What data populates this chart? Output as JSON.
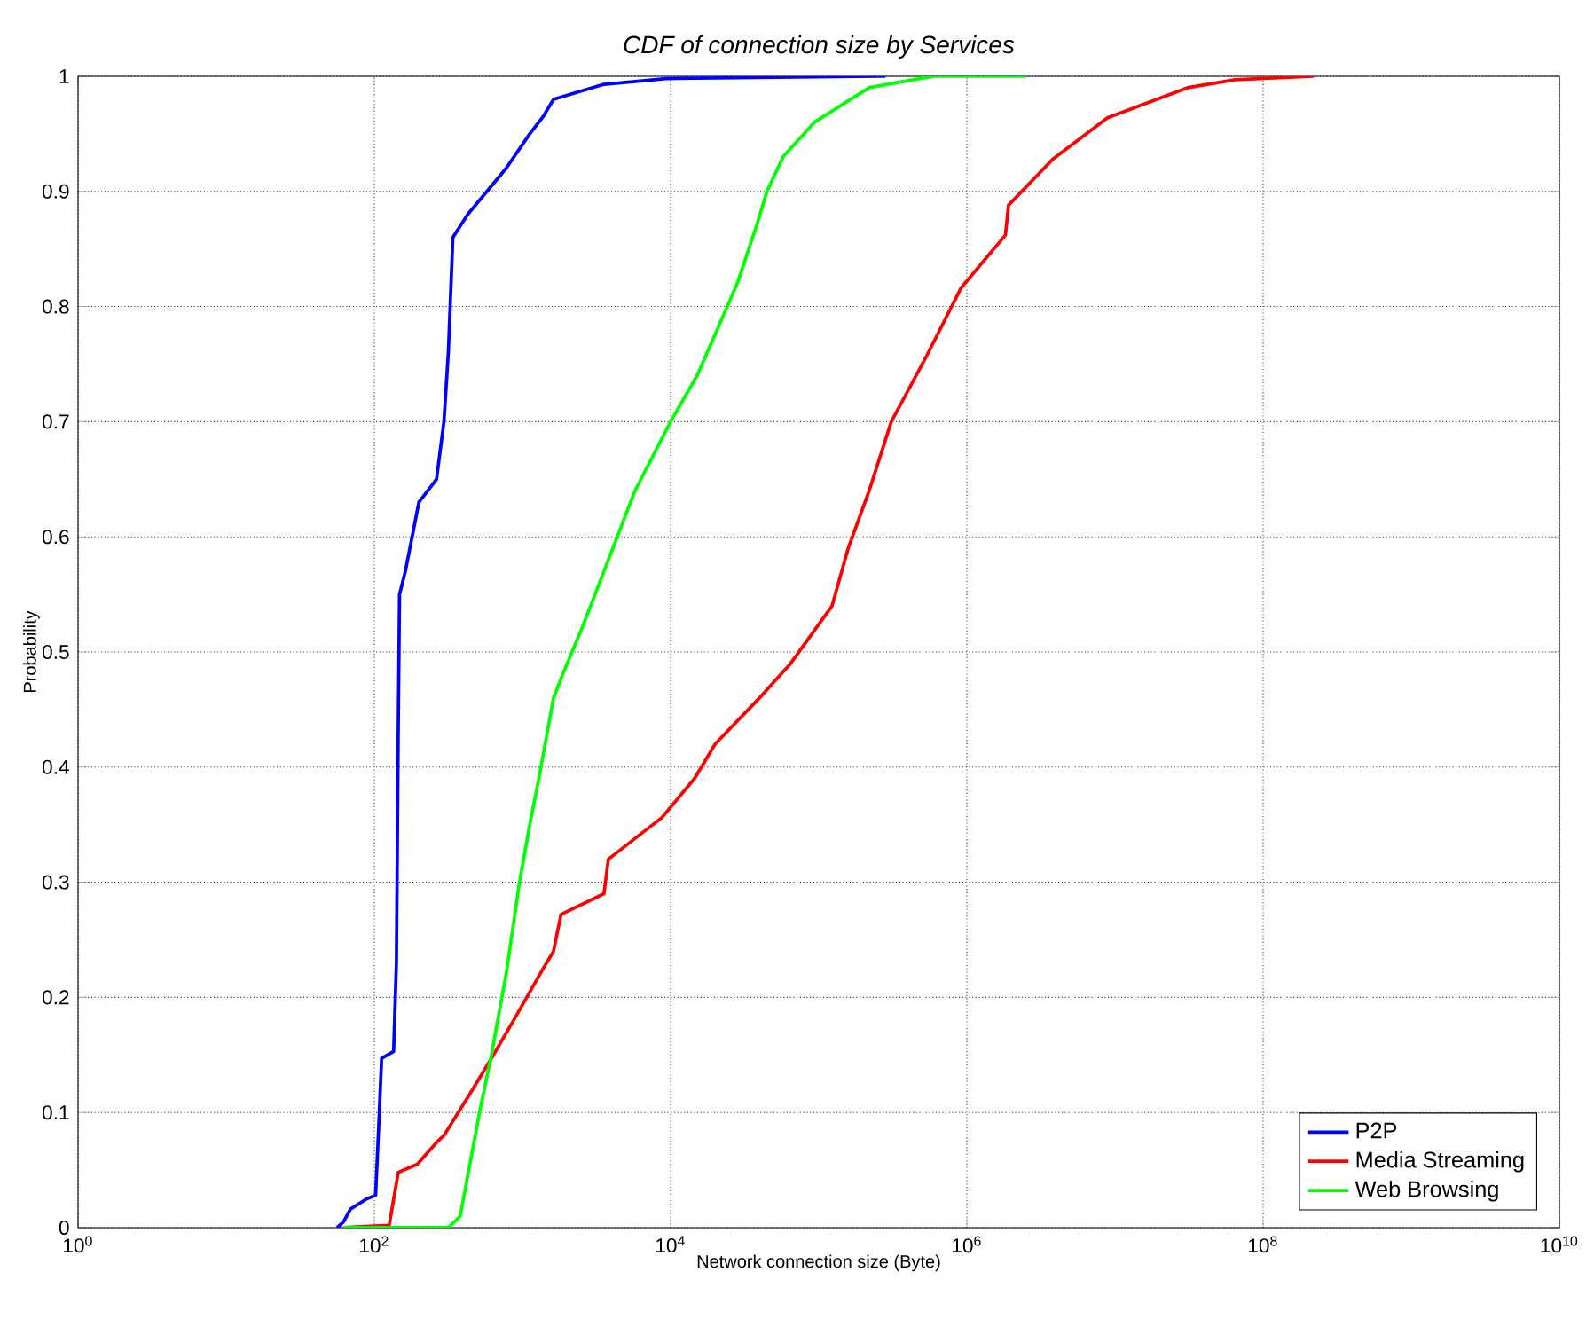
{
  "chart_data": {
    "type": "line",
    "title": "*CDF of connection size by Services*",
    "xlabel": "Network connection size (Byte)",
    "ylabel": "Probability",
    "log": "x",
    "grid": true,
    "legend": "bottom right",
    "xlim": [
      1,
      10000000000
    ],
    "ylim": [
      0,
      1
    ],
    "xticks": [
      {
        "value": 1,
        "label": "10$^{0}$"
      },
      {
        "value": 100,
        "label": "10$^{2}$"
      },
      {
        "value": 10000,
        "label": "10$^{4}$"
      },
      {
        "value": 1000000,
        "label": "10$^{6}$"
      },
      {
        "value": 100000000,
        "label": "10$^{8}$"
      },
      {
        "value": 10000000000,
        "label": "10$^{10}$"
      }
    ],
    "yticks": [
      0,
      0.1,
      0.2,
      0.3,
      0.4,
      0.5,
      0.6,
      0.7,
      0.8,
      0.9,
      1
    ],
    "series": [
      {
        "name": "P2P",
        "color": "#0000ff",
        "x": [
          56,
          62,
          69,
          89,
          102,
          107,
          112,
          135,
          141,
          145,
          148,
          162,
          200,
          263,
          295,
          316,
          339,
          427,
          776,
          1120,
          1380,
          1620,
          3550,
          9330,
          245000,
          282000
        ],
        "values": [
          0,
          0.005,
          0.016,
          0.025,
          0.028,
          0.087,
          0.147,
          0.153,
          0.23,
          0.43,
          0.55,
          0.57,
          0.63,
          0.65,
          0.7,
          0.76,
          0.86,
          0.88,
          0.92,
          0.95,
          0.965,
          0.98,
          0.993,
          0.998,
          1,
          1
        ]
      },
      {
        "name": "Media Streaming",
        "color": "#ff0000",
        "x": [
          62,
          126,
          145,
          195,
          263,
          295,
          427,
          617,
          871,
          1380,
          1620,
          1820,
          3550,
          3800,
          8710,
          14500,
          20000,
          39800,
          64600,
          123000,
          158000,
          219000,
          309000,
          525000,
          912000,
          1820000,
          1910000,
          3800000,
          8910000,
          30900000,
          64600000,
          219000000
        ],
        "values": [
          0,
          0.002,
          0.048,
          0.055,
          0.074,
          0.08,
          0.113,
          0.147,
          0.18,
          0.225,
          0.24,
          0.272,
          0.29,
          0.32,
          0.356,
          0.39,
          0.42,
          0.46,
          0.49,
          0.54,
          0.59,
          0.64,
          0.7,
          0.755,
          0.816,
          0.862,
          0.888,
          0.928,
          0.964,
          0.99,
          0.997,
          1
        ]
      },
      {
        "name": "Web Browsing",
        "color": "#00ff00",
        "x": [
          62,
          316,
          380,
          513,
          617,
          776,
          955,
          1120,
          1290,
          1620,
          1860,
          2510,
          3550,
          5750,
          10000,
          15100,
          28200,
          38000,
          44700,
          57500,
          93300,
          219000,
          479000,
          603000,
          2510000
        ],
        "values": [
          0,
          0,
          0.01,
          0.1,
          0.15,
          0.22,
          0.3,
          0.35,
          0.39,
          0.46,
          0.48,
          0.52,
          0.57,
          0.64,
          0.7,
          0.74,
          0.82,
          0.87,
          0.9,
          0.93,
          0.96,
          0.99,
          0.998,
          1,
          1
        ]
      }
    ]
  }
}
